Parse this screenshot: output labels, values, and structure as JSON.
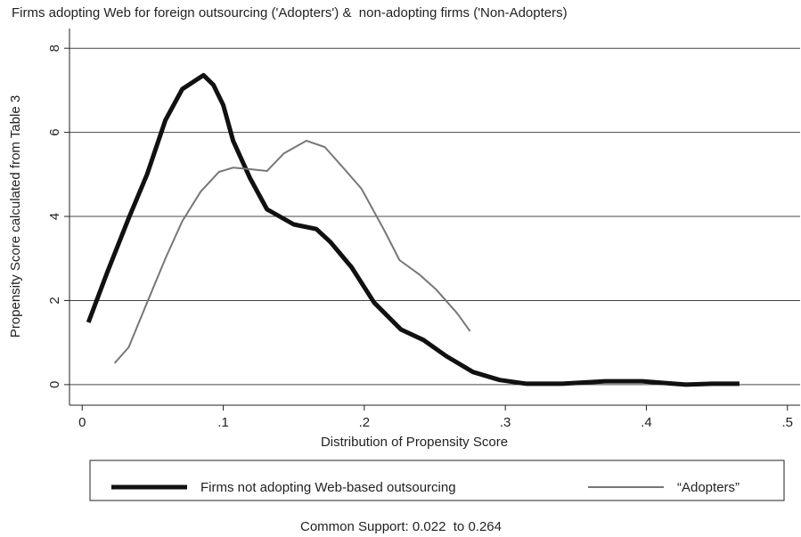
{
  "chart_data": {
    "type": "line",
    "title": "Firms adopting Web for foreign outsourcing ('Adopters') &  non-adopting firms ('Non-Adopters)",
    "x_label": "Distribution of Propensity Score",
    "y_label": "Propensity Score calculated from Table 3",
    "note": "Common Support: 0.022  to 0.264",
    "xlim": [
      -0.009,
      0.509
    ],
    "ylim": [
      -0.49,
      8.47
    ],
    "xticks": [
      {
        "value": 0,
        "label": "0"
      },
      {
        "value": 0.1,
        "label": ".1"
      },
      {
        "value": 0.2,
        "label": ".2"
      },
      {
        "value": 0.3,
        "label": ".3"
      },
      {
        "value": 0.4,
        "label": ".4"
      },
      {
        "value": 0.5,
        "label": ".5"
      }
    ],
    "yticks": [
      0,
      2,
      4,
      6,
      8
    ],
    "grid": true,
    "legend": "bottom",
    "series": [
      {
        "name": "Firms not adopting Web-based outsourcing",
        "color": "#111111",
        "line_width": 5,
        "x": [
          0.0044,
          0.018,
          0.033,
          0.046,
          0.059,
          0.071,
          0.086,
          0.093,
          0.1,
          0.107,
          0.119,
          0.131,
          0.15,
          0.166,
          0.176,
          0.191,
          0.207,
          0.226,
          0.242,
          0.258,
          0.277,
          0.296,
          0.315,
          0.34,
          0.371,
          0.397,
          0.428,
          0.447,
          0.466
        ],
        "values": [
          1.48,
          2.69,
          3.96,
          5.0,
          6.29,
          7.03,
          7.36,
          7.13,
          6.65,
          5.8,
          4.91,
          4.17,
          3.81,
          3.7,
          3.39,
          2.79,
          1.95,
          1.31,
          1.06,
          0.68,
          0.3,
          0.11,
          0.02,
          0.02,
          0.08,
          0.08,
          0,
          0.02,
          0.02
        ]
      },
      {
        "name": "“Adopters”",
        "color": "#777777",
        "line_width": 2,
        "x": [
          0.023,
          0.033,
          0.046,
          0.059,
          0.071,
          0.084,
          0.097,
          0.107,
          0.12,
          0.131,
          0.143,
          0.159,
          0.172,
          0.185,
          0.198,
          0.214,
          0.225,
          0.239,
          0.251,
          0.266,
          0.275
        ],
        "values": [
          0.51,
          0.89,
          1.95,
          3.0,
          3.89,
          4.59,
          5.06,
          5.16,
          5.12,
          5.08,
          5.5,
          5.8,
          5.65,
          5.16,
          4.66,
          3.68,
          2.96,
          2.62,
          2.26,
          1.69,
          1.27
        ]
      }
    ]
  }
}
